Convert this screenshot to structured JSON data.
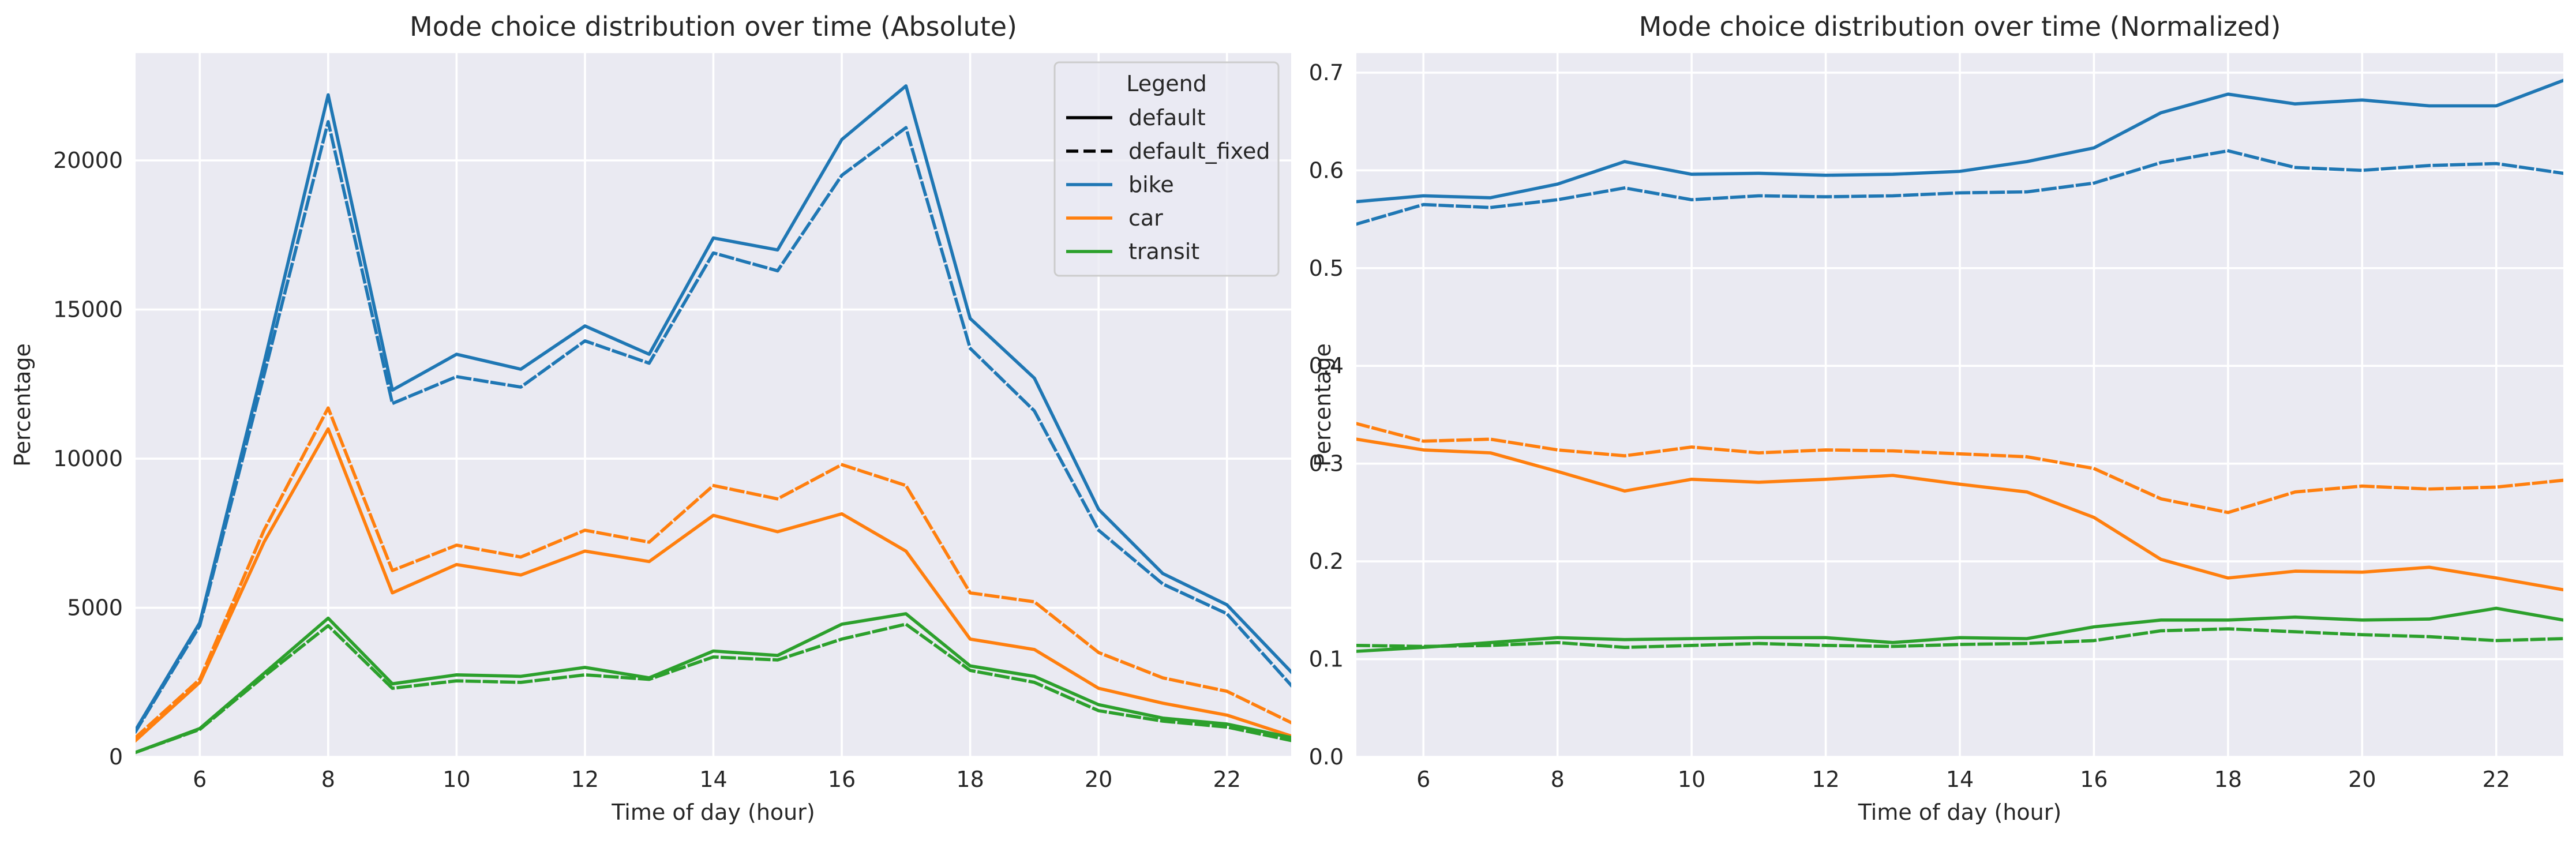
{
  "chart_data": [
    {
      "type": "line",
      "title": "Mode choice distribution over time (Absolute)",
      "xlabel": "Time of day (hour)",
      "ylabel": "Percentage",
      "xlim": [
        5,
        23
      ],
      "ylim": [
        0,
        23600
      ],
      "xticks": [
        6,
        8,
        10,
        12,
        14,
        16,
        18,
        20,
        22
      ],
      "yticks": [
        0,
        5000,
        10000,
        15000,
        20000
      ],
      "grid": true,
      "legend": {
        "title": "Legend",
        "placement": "top-right",
        "entries": [
          {
            "label": "default",
            "color": "#000000",
            "dash": "solid"
          },
          {
            "label": "default_fixed",
            "color": "#000000",
            "dash": "dashed"
          },
          {
            "label": "bike",
            "color": "#1f77b4",
            "dash": "solid"
          },
          {
            "label": "car",
            "color": "#ff7f0e",
            "dash": "solid"
          },
          {
            "label": "transit",
            "color": "#2ca02c",
            "dash": "solid"
          }
        ]
      },
      "x": [
        5,
        6,
        7,
        8,
        9,
        10,
        11,
        12,
        13,
        14,
        15,
        16,
        17,
        18,
        19,
        20,
        21,
        22,
        23
      ],
      "series": [
        {
          "name": "bike",
          "scenario": "default",
          "color": "#1f77b4",
          "dash": "solid",
          "values": [
            900,
            4500,
            13200,
            22200,
            12300,
            13500,
            13000,
            14450,
            13500,
            17400,
            17000,
            20700,
            22500,
            14700,
            12700,
            8300,
            6150,
            5100,
            2850
          ]
        },
        {
          "name": "bike",
          "scenario": "default_fixed",
          "color": "#1f77b4",
          "dash": "dashed",
          "values": [
            850,
            4400,
            12800,
            21300,
            11850,
            12750,
            12400,
            13950,
            13200,
            16900,
            16300,
            19500,
            21100,
            13700,
            11600,
            7600,
            5800,
            4800,
            2400
          ]
        },
        {
          "name": "car",
          "scenario": "default",
          "color": "#ff7f0e",
          "dash": "solid",
          "values": [
            550,
            2500,
            7200,
            11000,
            5500,
            6450,
            6100,
            6900,
            6550,
            8100,
            7550,
            8150,
            6900,
            3950,
            3600,
            2300,
            1800,
            1400,
            700
          ]
        },
        {
          "name": "car",
          "scenario": "default_fixed",
          "color": "#ff7f0e",
          "dash": "dashed",
          "values": [
            650,
            2600,
            7600,
            11700,
            6250,
            7100,
            6700,
            7600,
            7200,
            9100,
            8650,
            9800,
            9100,
            5500,
            5200,
            3500,
            2650,
            2200,
            1150
          ]
        },
        {
          "name": "transit",
          "scenario": "default",
          "color": "#2ca02c",
          "dash": "solid",
          "values": [
            150,
            950,
            2800,
            4650,
            2450,
            2750,
            2700,
            3000,
            2650,
            3550,
            3400,
            4450,
            4800,
            3050,
            2700,
            1750,
            1300,
            1100,
            650
          ]
        },
        {
          "name": "transit",
          "scenario": "default_fixed",
          "color": "#2ca02c",
          "dash": "dashed",
          "values": [
            150,
            920,
            2700,
            4400,
            2300,
            2550,
            2500,
            2750,
            2600,
            3350,
            3250,
            3950,
            4450,
            2900,
            2500,
            1550,
            1200,
            1000,
            550
          ]
        }
      ]
    },
    {
      "type": "line",
      "title": "Mode choice distribution over time (Normalized)",
      "xlabel": "Time of day (hour)",
      "ylabel": "Percentage",
      "xlim": [
        5,
        23
      ],
      "ylim": [
        0,
        0.72
      ],
      "xticks": [
        6,
        8,
        10,
        12,
        14,
        16,
        18,
        20,
        22
      ],
      "yticks": [
        0.0,
        0.1,
        0.2,
        0.3,
        0.4,
        0.5,
        0.6,
        0.7
      ],
      "ytick_labels": [
        "0.0",
        "0.1",
        "0.2",
        "0.3",
        "0.4",
        "0.5",
        "0.6",
        "0.7"
      ],
      "grid": true,
      "x": [
        5,
        6,
        7,
        8,
        9,
        10,
        11,
        12,
        13,
        14,
        15,
        16,
        17,
        18,
        19,
        20,
        21,
        22,
        23
      ],
      "series": [
        {
          "name": "bike",
          "scenario": "default",
          "color": "#1f77b4",
          "dash": "solid",
          "values": [
            0.568,
            0.574,
            0.572,
            0.586,
            0.609,
            0.596,
            0.597,
            0.595,
            0.596,
            0.599,
            0.609,
            0.623,
            0.659,
            0.678,
            0.668,
            0.672,
            0.666,
            0.666,
            0.692
          ]
        },
        {
          "name": "bike",
          "scenario": "default_fixed",
          "color": "#1f77b4",
          "dash": "dashed",
          "values": [
            0.545,
            0.565,
            0.562,
            0.57,
            0.582,
            0.57,
            0.574,
            0.573,
            0.574,
            0.577,
            0.578,
            0.587,
            0.608,
            0.62,
            0.603,
            0.6,
            0.605,
            0.607,
            0.597
          ]
        },
        {
          "name": "car",
          "scenario": "default",
          "color": "#ff7f0e",
          "dash": "solid",
          "values": [
            0.325,
            0.314,
            0.311,
            0.292,
            0.272,
            0.284,
            0.281,
            0.284,
            0.288,
            0.279,
            0.271,
            0.245,
            0.202,
            0.183,
            0.19,
            0.189,
            0.194,
            0.183,
            0.171
          ]
        },
        {
          "name": "car",
          "scenario": "default_fixed",
          "color": "#ff7f0e",
          "dash": "dashed",
          "values": [
            0.341,
            0.323,
            0.325,
            0.314,
            0.308,
            0.317,
            0.311,
            0.314,
            0.313,
            0.31,
            0.307,
            0.295,
            0.264,
            0.25,
            0.271,
            0.277,
            0.274,
            0.276,
            0.283
          ]
        },
        {
          "name": "transit",
          "scenario": "default",
          "color": "#2ca02c",
          "dash": "solid",
          "values": [
            0.108,
            0.112,
            0.117,
            0.122,
            0.12,
            0.121,
            0.122,
            0.122,
            0.117,
            0.122,
            0.121,
            0.133,
            0.14,
            0.14,
            0.143,
            0.14,
            0.141,
            0.152,
            0.14
          ]
        },
        {
          "name": "transit",
          "scenario": "default_fixed",
          "color": "#2ca02c",
          "dash": "dashed",
          "values": [
            0.114,
            0.113,
            0.114,
            0.117,
            0.112,
            0.114,
            0.116,
            0.114,
            0.113,
            0.115,
            0.116,
            0.119,
            0.129,
            0.131,
            0.128,
            0.125,
            0.123,
            0.119,
            0.121
          ]
        }
      ]
    }
  ]
}
